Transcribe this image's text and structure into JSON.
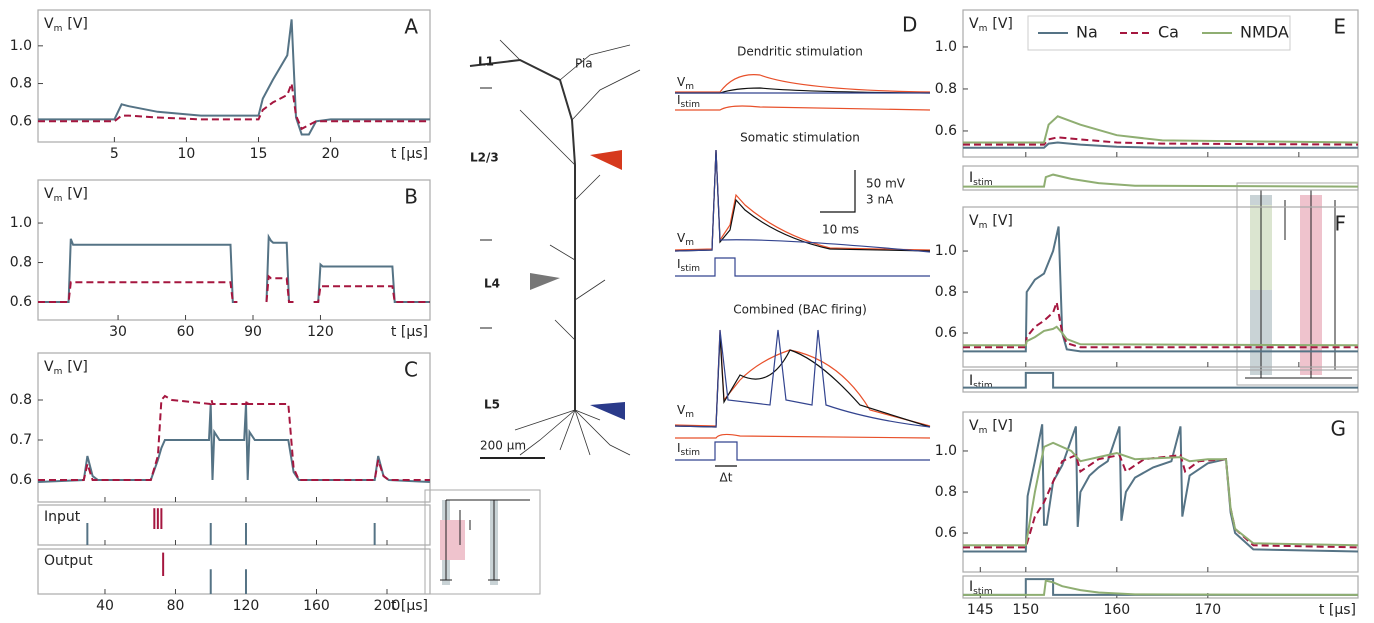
{
  "chart_data": [
    {
      "type": "line",
      "panel": "A",
      "ylabel": "V",
      "ylabel_sub": "m",
      "ylabel_unit": "[V]",
      "xlabel": "t [µs]",
      "xlim": [
        -0.3,
        26.9
      ],
      "ylim": [
        0.49,
        1.19
      ],
      "xticks": [
        5,
        10,
        15,
        20
      ],
      "yticks": [
        0.6,
        0.8,
        {
          "value": 1.0,
          "label": "1.0"
        }
      ],
      "series": [
        {
          "color": "#557385",
          "linestyle": "solid",
          "x": [
            -0.3,
            5,
            5.5,
            6,
            8,
            11,
            15,
            15.3,
            16,
            17,
            17.3,
            17.6,
            18,
            18.5,
            19,
            20,
            26.9
          ],
          "values": [
            0.61,
            0.61,
            0.69,
            0.68,
            0.65,
            0.63,
            0.63,
            0.72,
            0.82,
            0.95,
            1.14,
            0.62,
            0.53,
            0.53,
            0.6,
            0.61,
            0.61
          ]
        },
        {
          "color": "#a5163f",
          "linestyle": "dashed",
          "x": [
            -0.3,
            5,
            5.5,
            6,
            8,
            11,
            15,
            15.3,
            16,
            17,
            17.3,
            17.6,
            18,
            18.5,
            19,
            20,
            26.9
          ],
          "values": [
            0.6,
            0.6,
            0.63,
            0.63,
            0.62,
            0.61,
            0.61,
            0.66,
            0.7,
            0.74,
            0.8,
            0.63,
            0.56,
            0.58,
            0.6,
            0.6,
            0.6
          ]
        }
      ]
    },
    {
      "type": "line",
      "panel": "B",
      "ylabel": "V",
      "ylabel_sub": "m",
      "ylabel_unit": "[V]",
      "xlabel": "t [µs]",
      "xlim": [
        -5.6,
        168.7
      ],
      "ylim": [
        0.509,
        1.218
      ],
      "xticks": [
        30,
        60,
        90,
        120
      ],
      "yticks": [
        0.6,
        0.8,
        {
          "value": 1.0,
          "label": "1.0"
        }
      ],
      "series": [
        {
          "color": "#557385",
          "linestyle": "solid",
          "x": [
            -5.6,
            8,
            9,
            10,
            80,
            81,
            83,
            84,
            96,
            97,
            98,
            99,
            105,
            106,
            108,
            109,
            117,
            119,
            120,
            121,
            152,
            153,
            168.7
          ],
          "values": [
            0.6,
            0.6,
            0.92,
            0.89,
            0.89,
            0.6,
            0.6,
            null,
            0.6,
            0.93,
            0.91,
            0.9,
            0.9,
            0.6,
            0.6,
            null,
            0.6,
            0.6,
            0.79,
            0.78,
            0.78,
            0.6,
            0.6
          ]
        },
        {
          "color": "#a5163f",
          "linestyle": "dashed",
          "x": [
            -5.6,
            8,
            9,
            10,
            80,
            81,
            83,
            84,
            96,
            97,
            98,
            99,
            105,
            106,
            108,
            109,
            117,
            119,
            120,
            121,
            152,
            153,
            168.7
          ],
          "values": [
            0.6,
            0.6,
            0.7,
            0.7,
            0.7,
            0.6,
            0.6,
            null,
            0.6,
            0.73,
            0.72,
            0.72,
            0.72,
            0.6,
            0.6,
            null,
            0.6,
            0.6,
            0.68,
            0.68,
            0.68,
            0.6,
            0.6
          ]
        }
      ]
    },
    {
      "type": "line",
      "panel": "C",
      "ylabel": "V",
      "ylabel_sub": "m",
      "ylabel_unit": "[V]",
      "xlim": [
        2,
        224.4
      ],
      "ylim": [
        0.545,
        0.9175
      ],
      "xticks": [
        40,
        80,
        120,
        160,
        200
      ],
      "xtick_labels": false,
      "yticks": [
        0.6,
        0.7,
        0.8
      ],
      "series": [
        {
          "color": "#557385",
          "linestyle": "solid",
          "x": [
            2,
            28,
            30,
            33,
            36,
            66,
            70,
            72,
            74,
            76,
            99,
            100,
            101,
            102,
            105,
            119,
            120,
            121,
            122,
            125,
            144,
            147,
            150,
            193,
            195,
            198,
            201,
            224.4
          ],
          "values": [
            0.595,
            0.6,
            0.66,
            0.61,
            0.6,
            0.6,
            0.65,
            0.68,
            0.7,
            0.7,
            0.7,
            0.79,
            0.6,
            0.72,
            0.7,
            0.7,
            0.79,
            0.6,
            0.72,
            0.7,
            0.7,
            0.62,
            0.6,
            0.6,
            0.66,
            0.61,
            0.6,
            0.595
          ]
        },
        {
          "color": "#a5163f",
          "linestyle": "dashed",
          "x": [
            2,
            28,
            30,
            33,
            36,
            66,
            70,
            72,
            74,
            78,
            100,
            100.5,
            101,
            120,
            120.5,
            121,
            144,
            147,
            150,
            193,
            195,
            198,
            201,
            224.4
          ],
          "values": [
            0.6,
            0.6,
            0.64,
            0.6,
            0.6,
            0.6,
            0.66,
            0.8,
            0.81,
            0.8,
            0.79,
            0.8,
            0.79,
            0.79,
            0.8,
            0.79,
            0.79,
            0.63,
            0.6,
            0.6,
            0.65,
            0.61,
            0.6,
            0.6
          ]
        }
      ]
    },
    {
      "type": "event",
      "label": "Input",
      "xlim": [
        2,
        224.4
      ],
      "xticks": [
        40,
        80,
        120,
        160,
        200
      ],
      "xtick_labels": false,
      "series": [
        {
          "color": "#557385",
          "x": [
            30,
            100,
            120,
            193
          ]
        },
        {
          "color": "#a5163f",
          "x": [
            68,
            70,
            72
          ]
        }
      ]
    },
    {
      "type": "event",
      "label": "Output",
      "xlabel": "t [µs]",
      "xlim": [
        2,
        224.4
      ],
      "xticks": [
        40,
        80,
        120,
        160,
        200
      ],
      "series": [
        {
          "color": "#557385",
          "x": [
            100,
            120
          ]
        },
        {
          "color": "#a5163f",
          "x": [
            73
          ]
        }
      ]
    },
    {
      "type": "line",
      "panel": "E",
      "ylabel": "V",
      "ylabel_sub": "m",
      "ylabel_unit": "[V]",
      "legend": "top",
      "xlim": [
        143.1,
        186.5
      ],
      "ylim": [
        0.476,
        1.176
      ],
      "xticks": [
        150,
        160,
        170,
        180
      ],
      "xtick_labels": false,
      "yticks": [
        0.6,
        0.8,
        {
          "value": 1.0,
          "label": "1.0"
        }
      ],
      "series": [
        {
          "name": "Na",
          "color": "#557385",
          "linestyle": "solid",
          "x": [
            143.1,
            152,
            152.5,
            153.5,
            156,
            160,
            165,
            186.5
          ],
          "values": [
            0.52,
            0.52,
            0.54,
            0.545,
            0.535,
            0.525,
            0.52,
            0.52
          ]
        },
        {
          "name": "Ca",
          "color": "#a5163f",
          "linestyle": "dashed",
          "x": [
            143.1,
            152,
            152.5,
            153.5,
            156,
            160,
            165,
            186.5
          ],
          "values": [
            0.535,
            0.535,
            0.56,
            0.57,
            0.56,
            0.545,
            0.54,
            0.535
          ]
        },
        {
          "name": "NMDA",
          "color": "#8fae72",
          "linestyle": "solid",
          "x": [
            143.1,
            152,
            152.5,
            153.5,
            156,
            160,
            165,
            186.5
          ],
          "values": [
            0.545,
            0.545,
            0.63,
            0.67,
            0.63,
            0.58,
            0.555,
            0.545
          ]
        }
      ]
    },
    {
      "type": "line",
      "label": "I",
      "label_sub": "stim",
      "xlim": [
        143.1,
        186.5
      ],
      "ylim": [
        -0.2,
        1.2
      ],
      "series": [
        {
          "color": "#8fae72",
          "linestyle": "solid",
          "x": [
            143.1,
            152,
            152.2,
            153,
            155,
            158,
            162,
            186.5
          ],
          "values": [
            0,
            0,
            0.55,
            0.7,
            0.45,
            0.2,
            0.05,
            0
          ]
        }
      ]
    },
    {
      "type": "line",
      "panel": "F",
      "ylabel": "V",
      "ylabel_sub": "m",
      "ylabel_unit": "[V]",
      "xlim": [
        143.1,
        186.5
      ],
      "ylim": [
        0.434,
        1.215
      ],
      "xticks": [
        150,
        160,
        170,
        180
      ],
      "xtick_labels": false,
      "yticks": [
        0.6,
        0.8,
        {
          "value": 1.0,
          "label": "1.0"
        }
      ],
      "series": [
        {
          "color": "#557385",
          "linestyle": "solid",
          "x": [
            143.1,
            150,
            150.1,
            151,
            152,
            153,
            153.6,
            154,
            154.5,
            156,
            186.5
          ],
          "values": [
            0.51,
            0.51,
            0.8,
            0.86,
            0.89,
            1.0,
            1.12,
            0.6,
            0.52,
            0.51,
            0.51
          ]
        },
        {
          "color": "#a5163f",
          "linestyle": "dashed",
          "x": [
            143.1,
            150,
            150.1,
            151,
            152,
            153,
            153.4,
            154,
            154.5,
            156,
            186.5
          ],
          "values": [
            0.53,
            0.53,
            0.58,
            0.63,
            0.66,
            0.7,
            0.75,
            0.6,
            0.55,
            0.53,
            0.53
          ]
        },
        {
          "color": "#8fae72",
          "linestyle": "solid",
          "x": [
            143.1,
            150,
            150.1,
            151,
            152,
            153,
            153.4,
            154,
            154.5,
            156,
            186.5
          ],
          "values": [
            0.54,
            0.54,
            0.56,
            0.58,
            0.61,
            0.62,
            0.63,
            0.6,
            0.57,
            0.545,
            0.54
          ]
        }
      ]
    },
    {
      "type": "line",
      "label": "I",
      "label_sub": "stim",
      "xlim": [
        143.1,
        186.5
      ],
      "ylim": [
        -0.3,
        1.2
      ],
      "series": [
        {
          "color": "#557385",
          "linestyle": "solid",
          "x": [
            143.1,
            150,
            150,
            153,
            153,
            186.5
          ],
          "values": [
            0,
            0,
            1,
            1,
            0,
            0
          ]
        }
      ]
    },
    {
      "type": "line",
      "panel": "G",
      "ylabel": "V",
      "ylabel_sub": "m",
      "ylabel_unit": "[V]",
      "xlim": [
        143.1,
        186.5
      ],
      "ylim": [
        0.41,
        1.19
      ],
      "xticks": [
        145,
        150,
        160,
        170
      ],
      "xtick_labels": false,
      "yticks": [
        0.6,
        0.8,
        {
          "value": 1.0,
          "label": "1.0"
        }
      ],
      "series": [
        {
          "color": "#557385",
          "linestyle": "solid",
          "x": [
            143.1,
            150,
            150.2,
            151,
            151.8,
            152,
            152.3,
            153,
            154,
            155.5,
            155.7,
            156,
            157,
            158,
            159,
            160.3,
            160.5,
            161,
            162,
            164,
            166,
            167,
            167.2,
            168,
            170,
            172,
            172.5,
            173,
            175,
            186.5
          ],
          "values": [
            0.51,
            0.51,
            0.78,
            0.95,
            1.13,
            0.64,
            0.64,
            0.85,
            0.93,
            1.12,
            0.63,
            0.8,
            0.88,
            0.92,
            0.95,
            1.12,
            0.66,
            0.8,
            0.87,
            0.92,
            0.95,
            1.12,
            0.68,
            0.88,
            0.94,
            0.96,
            0.7,
            0.6,
            0.52,
            0.51
          ]
        },
        {
          "color": "#a5163f",
          "linestyle": "dashed",
          "x": [
            143.1,
            150,
            151,
            152,
            153,
            154,
            155.5,
            156,
            158,
            160.3,
            161,
            163,
            167,
            167.5,
            169,
            172,
            172.5,
            173,
            175,
            186.5
          ],
          "values": [
            0.53,
            0.53,
            0.68,
            0.75,
            0.85,
            0.95,
            0.98,
            0.9,
            0.96,
            0.98,
            0.9,
            0.96,
            0.98,
            0.9,
            0.95,
            0.96,
            0.72,
            0.62,
            0.54,
            0.53
          ]
        },
        {
          "color": "#8fae72",
          "linestyle": "solid",
          "x": [
            143.1,
            150,
            151,
            152,
            153,
            155,
            156,
            158,
            160,
            162,
            167,
            168,
            170,
            172,
            172.5,
            173,
            175,
            186.5
          ],
          "values": [
            0.54,
            0.54,
            0.8,
            1.02,
            1.04,
            1.0,
            0.95,
            0.97,
            0.99,
            0.96,
            0.97,
            0.95,
            0.96,
            0.96,
            0.72,
            0.62,
            0.55,
            0.54
          ]
        }
      ]
    },
    {
      "type": "line",
      "label": "I",
      "label_sub": "stim",
      "xlabel": "t [µs]",
      "xlim": [
        143.1,
        186.5
      ],
      "ylim": [
        -0.2,
        1.2
      ],
      "xticks": [
        145,
        150,
        160,
        170
      ],
      "series": [
        {
          "color": "#557385",
          "linestyle": "solid",
          "x": [
            143.1,
            150,
            150,
            153,
            153,
            186.5
          ],
          "values": [
            0,
            0,
            1,
            1,
            0,
            0
          ]
        },
        {
          "color": "#8fae72",
          "linestyle": "solid",
          "x": [
            143.1,
            152,
            152.2,
            153,
            154,
            156,
            158,
            162,
            186.5
          ],
          "values": [
            0,
            0,
            0.9,
            0.8,
            0.55,
            0.3,
            0.15,
            0.03,
            0
          ]
        }
      ]
    }
  ],
  "panel_d": {
    "label": "D",
    "pia": "Pia",
    "layers": [
      "L1",
      "L2/3",
      "L4",
      "L5"
    ],
    "scale_bar": "200 µm",
    "titles": [
      "Dendritic stimulation",
      "Somatic stimulation",
      "Combined (BAC firing)"
    ],
    "vm": "V",
    "vm_sub": "m",
    "istim": "I",
    "istim_sub": "stim",
    "scale_v": "50  mV",
    "scale_i": "3 nA",
    "scale_t": "10 ms",
    "delta_t": "Δt"
  }
}
